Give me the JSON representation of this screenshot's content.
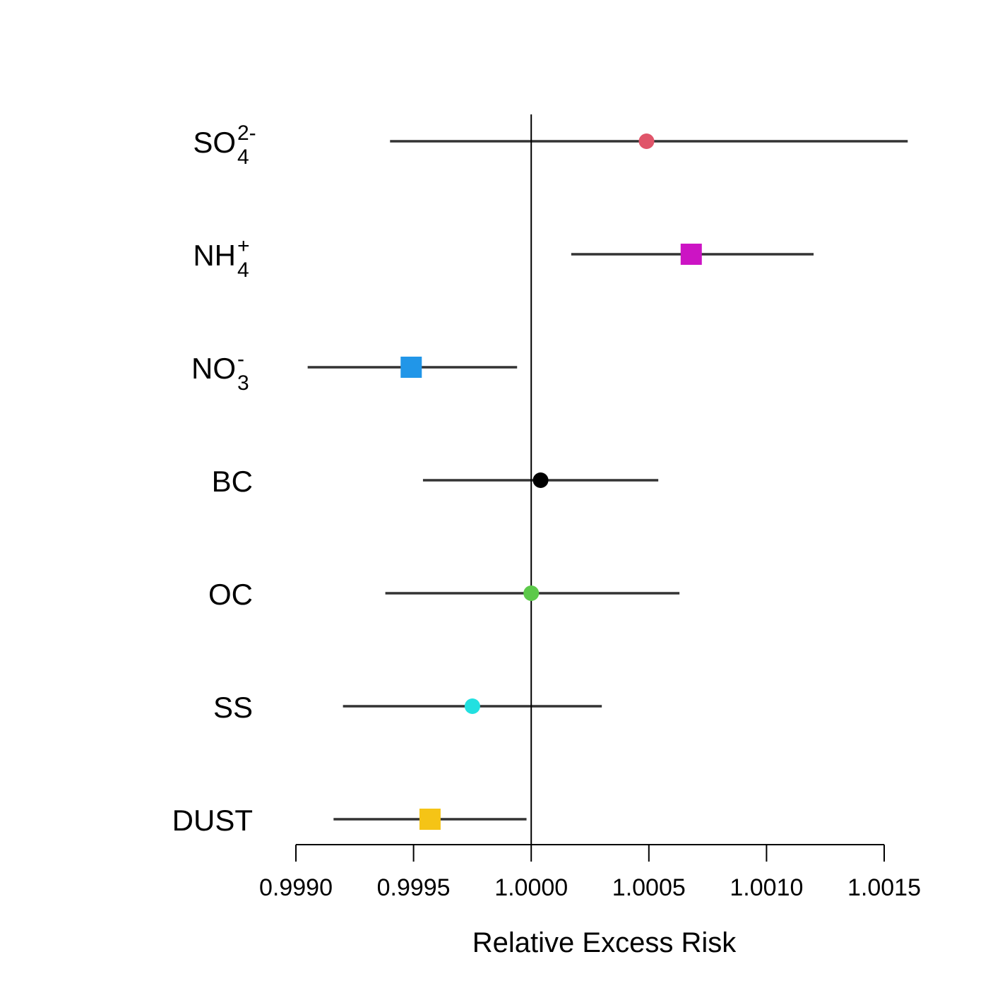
{
  "chart_data": {
    "type": "forest",
    "xlabel": "Relative Excess Risk",
    "xlim": [
      0.999,
      1.0015
    ],
    "xticks": [
      "0.9990",
      "0.9995",
      "1.0000",
      "1.0005",
      "1.0010",
      "1.0015"
    ],
    "xtick_values": [
      0.999,
      0.9995,
      1.0,
      1.0005,
      1.001,
      1.0015
    ],
    "reference_line": 1.0,
    "rows": [
      {
        "label": "SO",
        "sub": "4",
        "sup": "2-",
        "estimate": 1.00049,
        "lower": 0.9994,
        "upper": 1.0016,
        "marker": "circle",
        "color": "#e0556a"
      },
      {
        "label": "NH",
        "sub": "4",
        "sup": "+",
        "estimate": 1.00068,
        "lower": 1.00017,
        "upper": 1.0012,
        "marker": "square",
        "color": "#cc14c4"
      },
      {
        "label": "NO",
        "sub": "3",
        "sup": "-",
        "estimate": 0.99949,
        "lower": 0.99905,
        "upper": 0.99994,
        "marker": "square",
        "color": "#2196e8"
      },
      {
        "label": "BC",
        "sub": "",
        "sup": "",
        "estimate": 1.00004,
        "lower": 0.99954,
        "upper": 1.00054,
        "marker": "circle",
        "color": "#000000"
      },
      {
        "label": "OC",
        "sub": "",
        "sup": "",
        "estimate": 1.0,
        "lower": 0.99938,
        "upper": 1.00063,
        "marker": "circle",
        "color": "#5cc94a"
      },
      {
        "label": "SS",
        "sub": "",
        "sup": "",
        "estimate": 0.99975,
        "lower": 0.9992,
        "upper": 1.0003,
        "marker": "circle",
        "color": "#22e0e0"
      },
      {
        "label": "DUST",
        "sub": "",
        "sup": "",
        "estimate": 0.99957,
        "lower": 0.99916,
        "upper": 0.99998,
        "marker": "square",
        "color": "#f5c416"
      }
    ]
  }
}
